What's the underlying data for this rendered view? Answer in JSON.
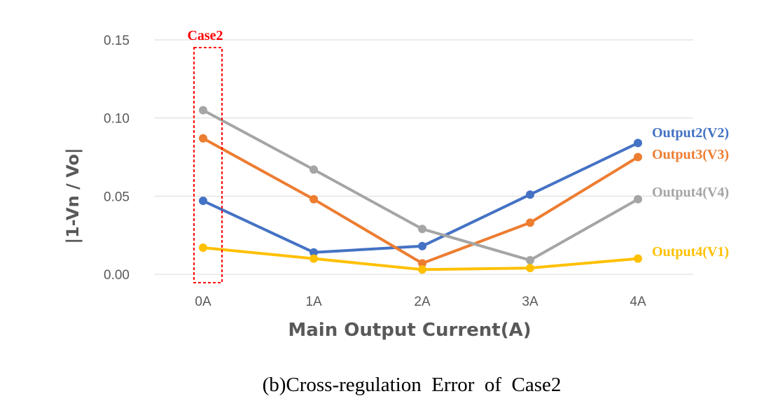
{
  "chart_data": {
    "type": "line",
    "categories": [
      "0A",
      "1A",
      "2A",
      "3A",
      "4A"
    ],
    "xlabel": "Main Output Current(A)",
    "ylabel": "|1-Vn / Vo|",
    "ylim": [
      0,
      0.15
    ],
    "yticks": [
      "0.00",
      "0.05",
      "0.10",
      "0.15"
    ],
    "grid": true,
    "series": [
      {
        "name": "Output2(V2)",
        "color": "#4472c4",
        "values": [
          0.047,
          0.014,
          0.018,
          0.051,
          0.084
        ]
      },
      {
        "name": "Output3(V3)",
        "color": "#ed7d31",
        "values": [
          0.087,
          0.048,
          0.007,
          0.033,
          0.075
        ]
      },
      {
        "name": "Output4(V4)",
        "color": "#a5a5a5",
        "values": [
          0.105,
          0.067,
          0.029,
          0.009,
          0.048
        ]
      },
      {
        "name": "Output4(V1)",
        "color": "#ffc000",
        "values": [
          0.017,
          0.01,
          0.003,
          0.004,
          0.01
        ]
      }
    ],
    "highlight": {
      "label": "Case2",
      "category": "0A",
      "color": "#ff0000"
    },
    "caption": "(b)Cross-regulation  Error  of  Case2"
  }
}
